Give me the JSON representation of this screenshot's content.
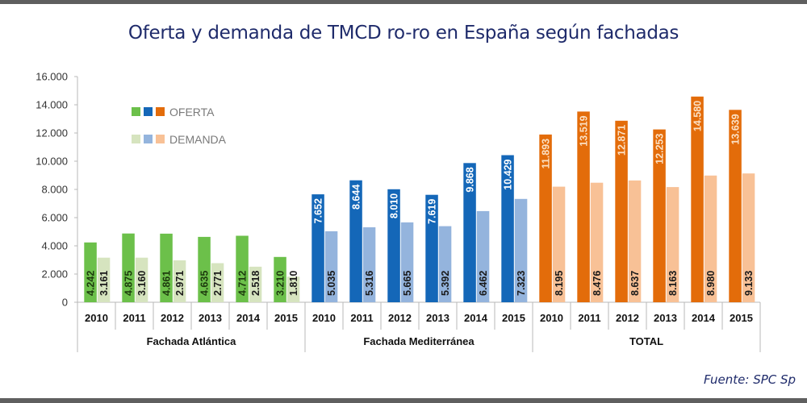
{
  "title": "Oferta y demanda de TMCD ro-ro en España según fachadas",
  "source": "Fuente: SPC Sp",
  "chart_data": {
    "type": "bar",
    "title": "Oferta y demanda de TMCD ro-ro en España según fachadas",
    "xlabel": "",
    "ylabel": "",
    "ylim": [
      0,
      16000
    ],
    "yticks": [
      0,
      2000,
      4000,
      6000,
      8000,
      10000,
      12000,
      14000,
      16000
    ],
    "ytick_labels": [
      "0",
      "2.000",
      "4.000",
      "6.000",
      "8.000",
      "10.000",
      "12.000",
      "14.000",
      "16.000"
    ],
    "grid": false,
    "legend": {
      "placement": "top-left",
      "entries": [
        {
          "label": "OFERTA",
          "colors": [
            "#6cc04a",
            "#1467b8",
            "#e36c0a"
          ]
        },
        {
          "label": "DEMANDA",
          "colors": [
            "#d6e4bf",
            "#94b4dd",
            "#f8c196"
          ]
        }
      ]
    },
    "groups": [
      {
        "name": "Fachada Atlántica",
        "categories": [
          "2010",
          "2011",
          "2012",
          "2013",
          "2014",
          "2015"
        ],
        "series": [
          {
            "name": "OFERTA",
            "color": "#6cc04a",
            "label_color": "#1d3b0e",
            "values": [
              4242,
              4875,
              4861,
              4635,
              4712,
              3210
            ],
            "labels": [
              "4.242",
              "4.875",
              "4.861",
              "4.635",
              "4.712",
              "3.210"
            ]
          },
          {
            "name": "DEMANDA",
            "color": "#d6e4bf",
            "label_color": "#1a1a1a",
            "values": [
              3161,
              3160,
              2971,
              2771,
              2518,
              1810
            ],
            "labels": [
              "3.161",
              "3.160",
              "2.971",
              "2.771",
              "2.518",
              "1.810"
            ]
          }
        ]
      },
      {
        "name": "Fachada Mediterránea",
        "categories": [
          "2010",
          "2011",
          "2012",
          "2013",
          "2014",
          "2015"
        ],
        "series": [
          {
            "name": "OFERTA",
            "color": "#1467b8",
            "label_color": "#ffffff",
            "values": [
              7652,
              8644,
              8010,
              7619,
              9868,
              10429
            ],
            "labels": [
              "7.652",
              "8.644",
              "8.010",
              "7.619",
              "9.868",
              "10.429"
            ]
          },
          {
            "name": "DEMANDA",
            "color": "#94b4dd",
            "label_color": "#1a1a1a",
            "values": [
              5035,
              5316,
              5665,
              5392,
              6462,
              7323
            ],
            "labels": [
              "5.035",
              "5.316",
              "5.665",
              "5.392",
              "6.462",
              "7.323"
            ]
          }
        ]
      },
      {
        "name": "TOTAL",
        "categories": [
          "2010",
          "2011",
          "2012",
          "2013",
          "2014",
          "2015"
        ],
        "series": [
          {
            "name": "OFERTA",
            "color": "#e36c0a",
            "label_color": "#fbe0c4",
            "values": [
              11893,
              13519,
              12871,
              12253,
              14580,
              13639
            ],
            "labels": [
              "11.893",
              "13.519",
              "12.871",
              "12.253",
              "14.580",
              "13.639"
            ]
          },
          {
            "name": "DEMANDA",
            "color": "#f8c196",
            "label_color": "#1a1a1a",
            "values": [
              8195,
              8476,
              8637,
              8163,
              8980,
              9133
            ],
            "labels": [
              "8.195",
              "8.476",
              "8.637",
              "8.163",
              "8.980",
              "9.133"
            ]
          }
        ]
      }
    ]
  }
}
